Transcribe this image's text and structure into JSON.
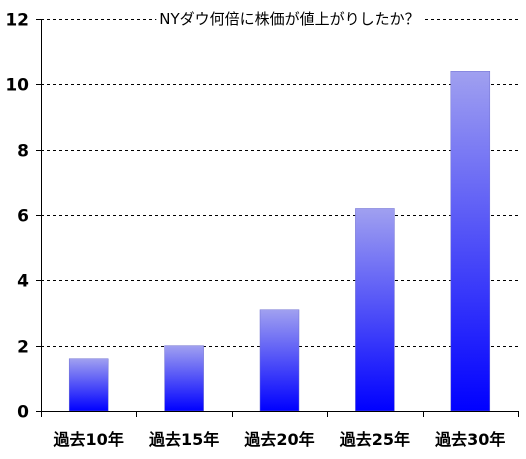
{
  "chart_data": {
    "type": "bar",
    "title": "NYダウ何倍に株価が値上がりしたか？",
    "categories": [
      "過去10年",
      "過去15年",
      "過去20年",
      "過去25年",
      "過去30年"
    ],
    "values": [
      1.6,
      2.0,
      3.1,
      6.2,
      10.4
    ],
    "ylim": [
      0,
      12
    ],
    "yticks": [
      0,
      2,
      4,
      6,
      8,
      10,
      12
    ],
    "ytick_labels": [
      "0",
      "2",
      "4",
      "6",
      "8",
      "10",
      "12"
    ],
    "xlabel": "",
    "ylabel": "",
    "grid": true,
    "legend": "none",
    "colors": {
      "bar_top": "#a0a0f0",
      "bar_bottom": "#0000ff",
      "grid": "#000000",
      "axis": "#000000"
    }
  }
}
